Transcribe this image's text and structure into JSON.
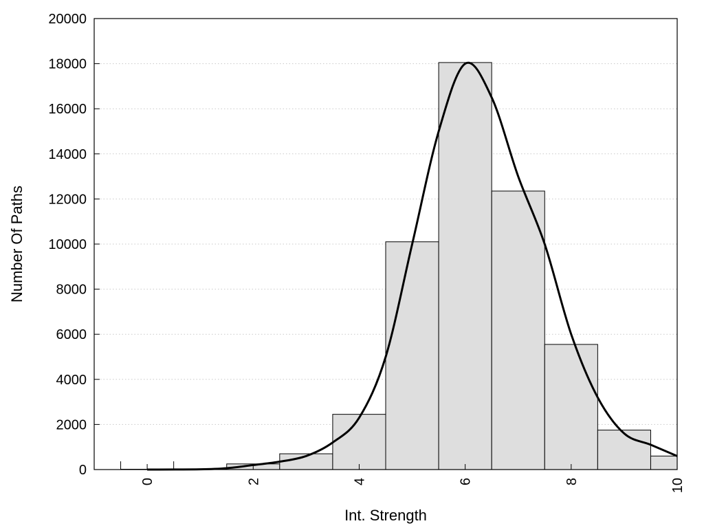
{
  "chart_data": {
    "type": "bar",
    "title": "",
    "xlabel": "Int. Strength",
    "ylabel": "Number Of Paths",
    "xlim": [
      -1,
      10
    ],
    "ylim": [
      0,
      20000
    ],
    "grid": true,
    "legend": "none",
    "x_ticks": [
      {
        "value": 0,
        "label": "0"
      },
      {
        "value": 2,
        "label": "2"
      },
      {
        "value": 4,
        "label": "4"
      },
      {
        "value": 6,
        "label": "6"
      },
      {
        "value": 8,
        "label": "8"
      },
      {
        "value": 10,
        "label": "10"
      }
    ],
    "y_ticks": [
      {
        "value": 0,
        "label": "0"
      },
      {
        "value": 2000,
        "label": "2000"
      },
      {
        "value": 4000,
        "label": "4000"
      },
      {
        "value": 6000,
        "label": "6000"
      },
      {
        "value": 8000,
        "label": "8000"
      },
      {
        "value": 10000,
        "label": "10000"
      },
      {
        "value": 12000,
        "label": "12000"
      },
      {
        "value": 14000,
        "label": "14000"
      },
      {
        "value": 16000,
        "label": "16000"
      },
      {
        "value": 18000,
        "label": "18000"
      },
      {
        "value": 20000,
        "label": "20000"
      }
    ],
    "bars": [
      {
        "x": 0,
        "value": 0
      },
      {
        "x": 1,
        "value": 0
      },
      {
        "x": 2,
        "value": 250
      },
      {
        "x": 3,
        "value": 700
      },
      {
        "x": 4,
        "value": 2450
      },
      {
        "x": 5,
        "value": 10100
      },
      {
        "x": 6,
        "value": 18050
      },
      {
        "x": 7,
        "value": 12350
      },
      {
        "x": 8,
        "value": 5550
      },
      {
        "x": 9,
        "value": 1750
      },
      {
        "x": 10,
        "value": 600
      }
    ],
    "bar_width": 1,
    "bar_color": "#dedede",
    "curve": {
      "points": [
        [
          0,
          0
        ],
        [
          1,
          10
        ],
        [
          1.5,
          60
        ],
        [
          2,
          200
        ],
        [
          2.5,
          350
        ],
        [
          3,
          600
        ],
        [
          3.5,
          1200
        ],
        [
          4,
          2300
        ],
        [
          4.5,
          5000
        ],
        [
          5,
          10000
        ],
        [
          5.5,
          15000
        ],
        [
          6,
          18000
        ],
        [
          6.5,
          16500
        ],
        [
          7,
          13000
        ],
        [
          7.5,
          10000
        ],
        [
          8,
          6000
        ],
        [
          8.5,
          3200
        ],
        [
          9,
          1600
        ],
        [
          9.5,
          1100
        ],
        [
          10,
          600
        ]
      ],
      "color": "#000000"
    }
  }
}
